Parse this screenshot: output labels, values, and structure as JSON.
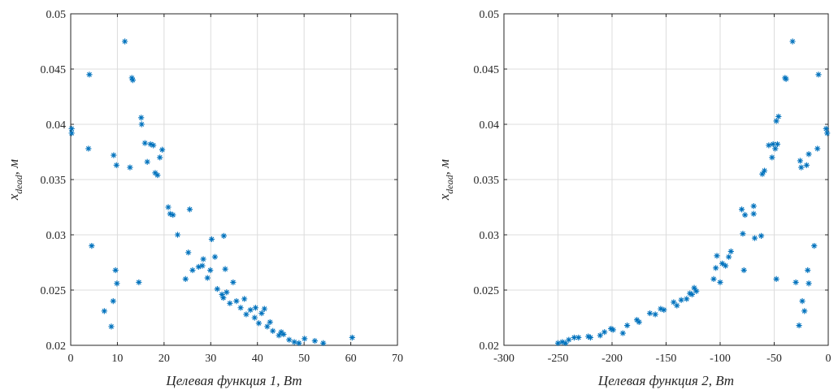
{
  "chart_data": [
    {
      "type": "scatter",
      "xlabel": "Целевая функция 1, Вт",
      "ylabel_main": "x",
      "ylabel_sub": "dead",
      "ylabel_suffix": ", м",
      "xlim": [
        0,
        70
      ],
      "ylim": [
        0.02,
        0.05
      ],
      "xticks": [
        0,
        10,
        20,
        30,
        40,
        50,
        60,
        70
      ],
      "xtick_labels": [
        "0",
        "10",
        "20",
        "30",
        "40",
        "50",
        "60",
        "70"
      ],
      "yticks": [
        0.02,
        0.025,
        0.03,
        0.035,
        0.04,
        0.045,
        0.05
      ],
      "ytick_labels": [
        "0.02",
        "0.025",
        "0.03",
        "0.035",
        "0.04",
        "0.045",
        "0.05"
      ],
      "grid": true,
      "marker": "asterisk",
      "color": "#0072bd",
      "points": [
        [
          0.2,
          0.0396
        ],
        [
          0.2,
          0.0392
        ],
        [
          4.0,
          0.0445
        ],
        [
          3.8,
          0.0378
        ],
        [
          4.5,
          0.029
        ],
        [
          7.2,
          0.0231
        ],
        [
          8.7,
          0.0217
        ],
        [
          9.1,
          0.024
        ],
        [
          9.2,
          0.0372
        ],
        [
          9.8,
          0.0363
        ],
        [
          9.6,
          0.0268
        ],
        [
          9.9,
          0.0256
        ],
        [
          11.6,
          0.0475
        ],
        [
          12.7,
          0.0361
        ],
        [
          13.1,
          0.0442
        ],
        [
          13.3,
          0.044
        ],
        [
          14.6,
          0.0257
        ],
        [
          15.1,
          0.0406
        ],
        [
          15.2,
          0.04
        ],
        [
          15.9,
          0.0383
        ],
        [
          16.4,
          0.0366
        ],
        [
          17.1,
          0.0382
        ],
        [
          17.7,
          0.0381
        ],
        [
          18.1,
          0.0356
        ],
        [
          18.6,
          0.0354
        ],
        [
          19.1,
          0.037
        ],
        [
          19.6,
          0.0377
        ],
        [
          20.9,
          0.0325
        ],
        [
          21.3,
          0.0319
        ],
        [
          21.9,
          0.0318
        ],
        [
          22.9,
          0.03
        ],
        [
          24.6,
          0.026
        ],
        [
          25.2,
          0.0284
        ],
        [
          25.5,
          0.0323
        ],
        [
          26.1,
          0.0268
        ],
        [
          27.4,
          0.0271
        ],
        [
          28.2,
          0.0272
        ],
        [
          28.4,
          0.0278
        ],
        [
          29.3,
          0.0261
        ],
        [
          29.9,
          0.0268
        ],
        [
          30.2,
          0.0296
        ],
        [
          30.9,
          0.028
        ],
        [
          31.4,
          0.0251
        ],
        [
          32.4,
          0.0246
        ],
        [
          32.7,
          0.0243
        ],
        [
          32.8,
          0.0299
        ],
        [
          33.1,
          0.0269
        ],
        [
          33.4,
          0.0248
        ],
        [
          34.1,
          0.0238
        ],
        [
          34.8,
          0.0257
        ],
        [
          35.5,
          0.024
        ],
        [
          36.4,
          0.0234
        ],
        [
          37.2,
          0.0242
        ],
        [
          37.6,
          0.0228
        ],
        [
          38.5,
          0.0232
        ],
        [
          39.4,
          0.0225
        ],
        [
          39.6,
          0.0234
        ],
        [
          40.3,
          0.022
        ],
        [
          40.9,
          0.0229
        ],
        [
          41.5,
          0.0233
        ],
        [
          42.1,
          0.0217
        ],
        [
          42.7,
          0.0221
        ],
        [
          43.3,
          0.0213
        ],
        [
          44.6,
          0.0209
        ],
        [
          45.1,
          0.0212
        ],
        [
          45.6,
          0.021
        ],
        [
          46.8,
          0.0205
        ],
        [
          47.9,
          0.0203
        ],
        [
          48.9,
          0.0202
        ],
        [
          50.1,
          0.0206
        ],
        [
          52.3,
          0.0204
        ],
        [
          54.1,
          0.0202
        ],
        [
          60.3,
          0.0207
        ]
      ]
    },
    {
      "type": "scatter",
      "xlabel": "Целевая функция 2, Вт",
      "ylabel_main": "x",
      "ylabel_sub": "dead",
      "ylabel_suffix": ", м",
      "xlim": [
        -300,
        0
      ],
      "ylim": [
        0.02,
        0.05
      ],
      "xticks": [
        -300,
        -250,
        -200,
        -150,
        -100,
        -50,
        0
      ],
      "xtick_labels": [
        "-300",
        "-250",
        "-200",
        "-150",
        "-100",
        "-50",
        "0"
      ],
      "yticks": [
        0.02,
        0.025,
        0.03,
        0.035,
        0.04,
        0.045,
        0.05
      ],
      "ytick_labels": [
        "0.02",
        "0.025",
        "0.03",
        "0.035",
        "0.04",
        "0.045",
        "0.05"
      ],
      "grid": true,
      "marker": "asterisk",
      "color": "#0072bd",
      "points": [
        [
          -250,
          0.0202
        ],
        [
          -246,
          0.0203
        ],
        [
          -243,
          0.0202
        ],
        [
          -240,
          0.0205
        ],
        [
          -235,
          0.0207
        ],
        [
          -231,
          0.0207
        ],
        [
          -222,
          0.0208
        ],
        [
          -220,
          0.0207
        ],
        [
          -211,
          0.0209
        ],
        [
          -207,
          0.0212
        ],
        [
          -201,
          0.0215
        ],
        [
          -199,
          0.0214
        ],
        [
          -190,
          0.0211
        ],
        [
          -186,
          0.0218
        ],
        [
          -177,
          0.0223
        ],
        [
          -175,
          0.0221
        ],
        [
          -165,
          0.0229
        ],
        [
          -160,
          0.0228
        ],
        [
          -155,
          0.0233
        ],
        [
          -152,
          0.0232
        ],
        [
          -143,
          0.0239
        ],
        [
          -140,
          0.0236
        ],
        [
          -136,
          0.0241
        ],
        [
          -131,
          0.0242
        ],
        [
          -128,
          0.0247
        ],
        [
          -126,
          0.0246
        ],
        [
          -124,
          0.0252
        ],
        [
          -122,
          0.0249
        ],
        [
          -106,
          0.026
        ],
        [
          -104,
          0.027
        ],
        [
          -103,
          0.0281
        ],
        [
          -100,
          0.0257
        ],
        [
          -98,
          0.0274
        ],
        [
          -95,
          0.0272
        ],
        [
          -92,
          0.028
        ],
        [
          -90,
          0.0285
        ],
        [
          -80,
          0.0323
        ],
        [
          -79,
          0.0301
        ],
        [
          -78,
          0.0268
        ],
        [
          -77,
          0.0318
        ],
        [
          -69,
          0.0326
        ],
        [
          -69,
          0.0319
        ],
        [
          -68,
          0.0297
        ],
        [
          -62,
          0.0299
        ],
        [
          -61,
          0.0355
        ],
        [
          -59,
          0.0358
        ],
        [
          -55,
          0.0381
        ],
        [
          -52,
          0.037
        ],
        [
          -51,
          0.0382
        ],
        [
          -49,
          0.0378
        ],
        [
          -48,
          0.026
        ],
        [
          -48,
          0.0403
        ],
        [
          -47,
          0.0382
        ],
        [
          -46,
          0.0407
        ],
        [
          -40,
          0.0442
        ],
        [
          -39,
          0.0441
        ],
        [
          -33,
          0.0475
        ],
        [
          -30,
          0.0257
        ],
        [
          -27,
          0.0218
        ],
        [
          -26,
          0.0367
        ],
        [
          -25,
          0.0361
        ],
        [
          -24,
          0.024
        ],
        [
          -22,
          0.0231
        ],
        [
          -20,
          0.0363
        ],
        [
          -19,
          0.0268
        ],
        [
          -18,
          0.0256
        ],
        [
          -18,
          0.0373
        ],
        [
          -13,
          0.029
        ],
        [
          -10,
          0.0378
        ],
        [
          -9,
          0.0445
        ],
        [
          -2,
          0.0396
        ],
        [
          -1,
          0.0392
        ]
      ]
    }
  ]
}
